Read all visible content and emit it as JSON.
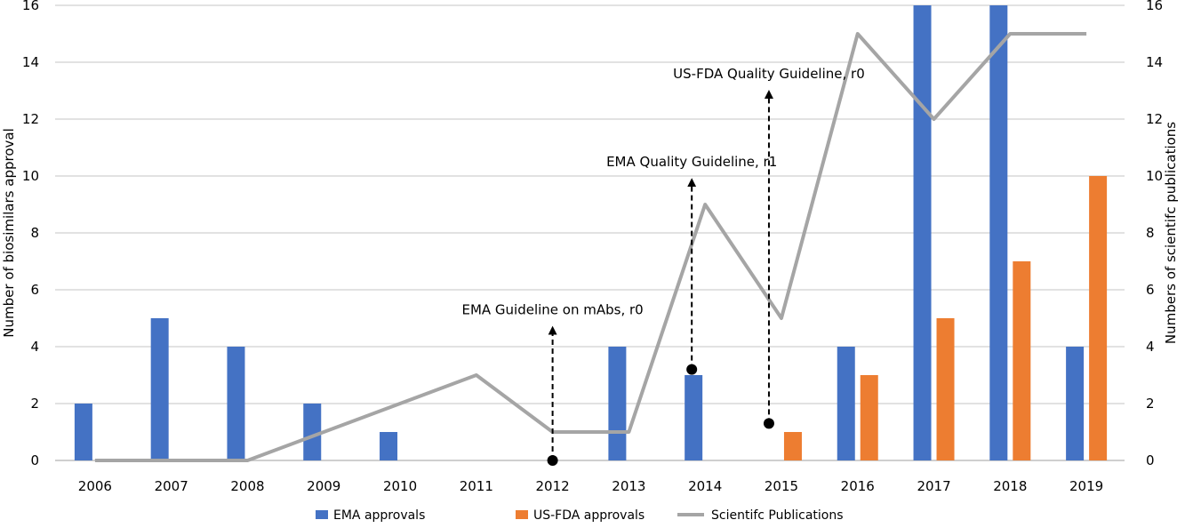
{
  "chart_data": {
    "type": "bar+line",
    "title": "",
    "categories": [
      "2006",
      "2007",
      "2008",
      "2009",
      "2010",
      "2011",
      "2012",
      "2013",
      "2014",
      "2015",
      "2016",
      "2017",
      "2018",
      "2019"
    ],
    "ylabel": "Number of biosimilars approval",
    "y2label": "Numbers of scientifc publications",
    "ylim": [
      0,
      16
    ],
    "y2lim": [
      0,
      16
    ],
    "yticks": [
      0,
      2,
      4,
      6,
      8,
      10,
      12,
      14,
      16
    ],
    "grid": true,
    "legend_position": "bottom",
    "series": [
      {
        "name": "EMA approvals",
        "type": "bar",
        "axis": "left",
        "color": "#4472C4",
        "values": [
          2,
          5,
          4,
          2,
          1,
          0,
          0,
          4,
          3,
          0,
          4,
          16,
          16,
          4
        ]
      },
      {
        "name": "US-FDA approvals",
        "type": "bar",
        "axis": "left",
        "color": "#ED7D31",
        "values": [
          0,
          0,
          0,
          0,
          0,
          0,
          0,
          0,
          0,
          1,
          3,
          5,
          7,
          10
        ]
      },
      {
        "name": "Scientifc Publications",
        "type": "line",
        "axis": "right",
        "color": "#A5A5A5",
        "values": [
          0,
          0,
          0,
          1,
          2,
          3,
          1,
          1,
          9,
          5,
          15,
          12,
          15,
          15
        ]
      }
    ],
    "annotations": [
      {
        "text": "EMA Guideline on mAbs, r0",
        "x": "2012",
        "from": 0,
        "to": 4.7
      },
      {
        "text": "EMA Quality Guideline, r1",
        "x": "2014",
        "from": 3.2,
        "to": 9.9
      },
      {
        "text": "US-FDA Quality Guideline, r0",
        "x": "2015",
        "from": 1.3,
        "to": 13
      }
    ]
  }
}
